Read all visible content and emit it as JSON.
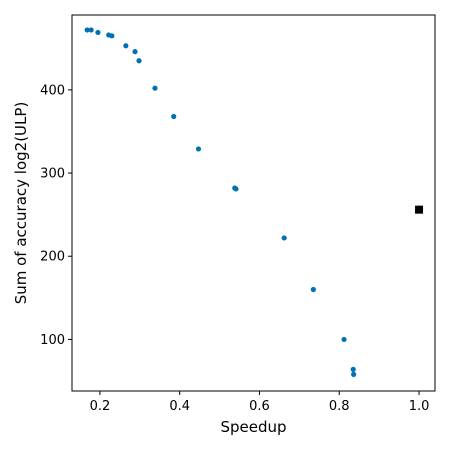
{
  "chart_data": {
    "type": "scatter",
    "title": "",
    "xlabel": "Speedup",
    "ylabel": "Sum of accuracy log2(ULP)",
    "xlim": [
      0.13,
      1.04
    ],
    "ylim": [
      38,
      490
    ],
    "xticks": [
      0.2,
      0.4,
      0.6,
      0.8,
      1.0
    ],
    "xtick_labels": [
      "0.2",
      "0.4",
      "0.6",
      "0.8",
      "1.0"
    ],
    "yticks": [
      100,
      200,
      300,
      400
    ],
    "ytick_labels": [
      "100",
      "200",
      "300",
      "400"
    ],
    "grid": false,
    "legend": "none",
    "series": [
      {
        "marker": "circle",
        "color": "#0072b2",
        "points": [
          {
            "x": 0.168,
            "y": 472
          },
          {
            "x": 0.178,
            "y": 472
          },
          {
            "x": 0.195,
            "y": 469
          },
          {
            "x": 0.222,
            "y": 466
          },
          {
            "x": 0.23,
            "y": 465
          },
          {
            "x": 0.265,
            "y": 453
          },
          {
            "x": 0.288,
            "y": 446
          },
          {
            "x": 0.298,
            "y": 435
          },
          {
            "x": 0.338,
            "y": 402
          },
          {
            "x": 0.385,
            "y": 368
          },
          {
            "x": 0.447,
            "y": 329
          },
          {
            "x": 0.538,
            "y": 282
          },
          {
            "x": 0.541,
            "y": 281
          },
          {
            "x": 0.662,
            "y": 222
          },
          {
            "x": 0.735,
            "y": 160
          },
          {
            "x": 0.812,
            "y": 100
          },
          {
            "x": 0.835,
            "y": 64
          },
          {
            "x": 0.836,
            "y": 58
          }
        ]
      },
      {
        "marker": "square",
        "color": "#000000",
        "points": [
          {
            "x": 1.0,
            "y": 256
          }
        ]
      }
    ]
  }
}
